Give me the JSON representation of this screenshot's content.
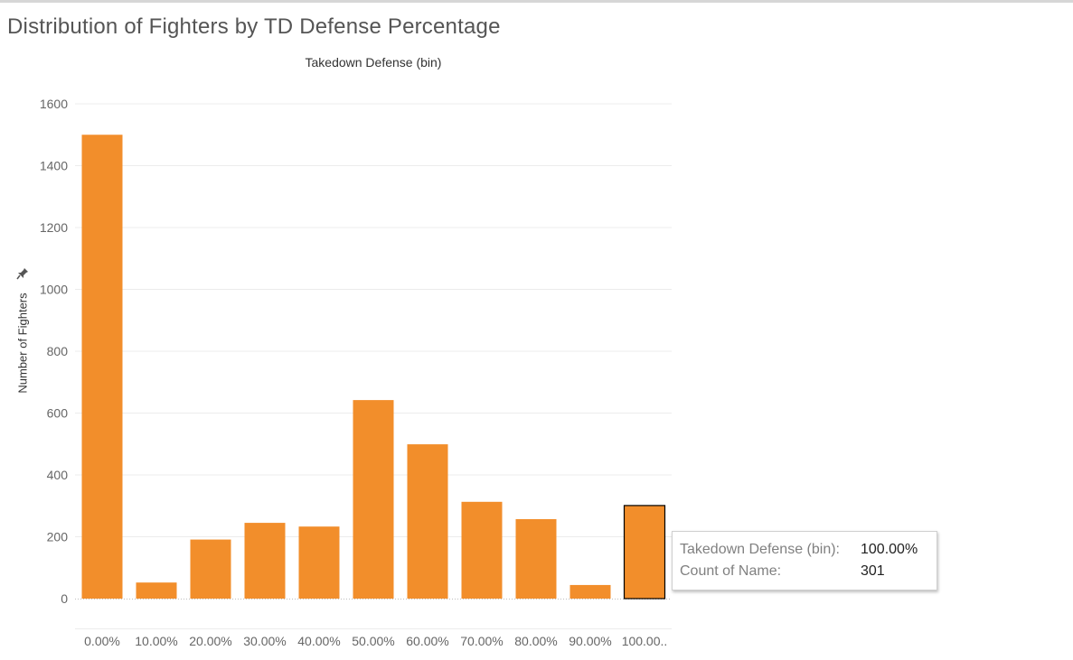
{
  "title": "Distribution of Fighters by TD Defense Percentage",
  "colors": {
    "bar": "#f28e2b",
    "grid": "#ececec",
    "selected_outline": "#000000"
  },
  "chart_data": {
    "type": "bar",
    "xlabel": "Takedown Defense (bin)",
    "ylabel": "Number of Fighters",
    "ylim": [
      0,
      1650
    ],
    "yticks": [
      "0",
      "200",
      "400",
      "600",
      "800",
      "1000",
      "1200",
      "1400",
      "1600"
    ],
    "categories": [
      "0.00%",
      "10.00%",
      "20.00%",
      "30.00%",
      "40.00%",
      "50.00%",
      "60.00%",
      "70.00%",
      "80.00%",
      "90.00%",
      "100.00.."
    ],
    "values": [
      1500,
      52,
      191,
      245,
      233,
      642,
      499,
      313,
      257,
      44,
      301
    ],
    "grid": true,
    "selected_index": 10
  },
  "tooltip": {
    "rows": [
      {
        "key": "Takedown Defense (bin):",
        "value": "100.00%"
      },
      {
        "key": "Count of Name:",
        "value": "301"
      }
    ]
  }
}
